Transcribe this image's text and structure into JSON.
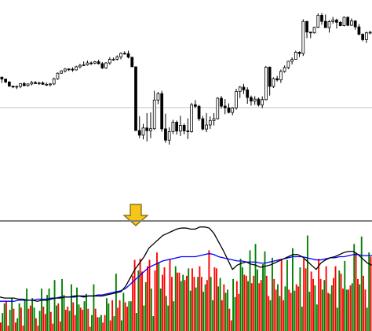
{
  "chart_data": [
    {
      "type": "candlestick",
      "title": "",
      "xlabel": "",
      "ylabel": "",
      "grid": false,
      "ylim": [
        0,
        100
      ],
      "reference_line": 46,
      "arrow_at_index": 49,
      "colors": {
        "bull_body": "#ffffff",
        "bear_body": "#000000",
        "wick": "#000000",
        "reference_line": "#c8c8c8",
        "arrow_fill": "#f5c518",
        "arrow_stroke": "#7a6000"
      },
      "candles": [
        [
          62.5,
          62.5,
          59.4,
          61.5
        ],
        [
          61.5,
          61.5,
          59.3,
          59.9
        ],
        [
          59.9,
          60.3,
          57.2,
          57.7
        ],
        [
          57.7,
          57.9,
          56.5,
          57.2
        ],
        [
          57.2,
          58.0,
          56.0,
          57.5
        ],
        [
          57.5,
          59.3,
          56.5,
          59.0
        ],
        [
          59.0,
          59.9,
          57.6,
          57.9
        ],
        [
          57.9,
          59.1,
          57.4,
          58.8
        ],
        [
          58.8,
          60.5,
          58.0,
          59.6
        ],
        [
          59.6,
          60.4,
          58.8,
          59.0
        ],
        [
          59.0,
          60.1,
          58.3,
          59.4
        ],
        [
          59.4,
          60.2,
          58.4,
          58.6
        ],
        [
          58.6,
          59.6,
          57.8,
          58.6
        ],
        [
          58.6,
          59.3,
          57.5,
          58.8
        ],
        [
          58.8,
          62.2,
          58.2,
          61.6
        ],
        [
          61.6,
          65.0,
          61.1,
          64.6
        ],
        [
          64.6,
          66.2,
          64.3,
          65.9
        ],
        [
          65.9,
          67.4,
          65.0,
          66.9
        ],
        [
          66.9,
          67.3,
          65.8,
          66.8
        ],
        [
          66.8,
          67.8,
          65.4,
          66.4
        ],
        [
          66.4,
          68.7,
          66.1,
          68.1
        ],
        [
          68.1,
          69.7,
          67.2,
          68.9
        ],
        [
          68.9,
          71.0,
          68.6,
          69.2
        ],
        [
          69.2,
          71.5,
          68.7,
          70.2
        ],
        [
          70.2,
          71.0,
          69.1,
          70.1
        ],
        [
          70.1,
          71.3,
          69.5,
          70.8
        ],
        [
          70.8,
          71.9,
          69.4,
          69.8
        ],
        [
          69.8,
          70.7,
          66.9,
          67.5
        ],
        [
          67.5,
          70.6,
          67.0,
          70.2
        ],
        [
          70.2,
          73.3,
          69.2,
          72.1
        ],
        [
          72.1,
          73.1,
          71.3,
          72.2
        ],
        [
          72.2,
          74.3,
          71.5,
          73.5
        ],
        [
          73.5,
          75.9,
          72.1,
          75.4
        ],
        [
          75.4,
          76.5,
          74.7,
          75.2
        ],
        [
          75.2,
          76.8,
          72.6,
          73.3
        ],
        [
          73.3,
          73.3,
          68.0,
          68.1
        ],
        [
          68.1,
          68.3,
          33.4,
          33.6
        ],
        [
          33.6,
          41.4,
          29.5,
          31.1
        ],
        [
          31.1,
          37.2,
          28.8,
          35.0
        ],
        [
          35.0,
          43.0,
          27.7,
          33.5
        ],
        [
          33.5,
          43.4,
          29.5,
          34.6
        ],
        [
          34.6,
          55.1,
          34.0,
          50.1
        ],
        [
          50.1,
          54.5,
          47.9,
          53.6
        ],
        [
          53.6,
          55.1,
          32.9,
          34.5
        ],
        [
          34.5,
          42.7,
          27.0,
          28.4
        ],
        [
          28.4,
          35.3,
          26.0,
          33.0
        ],
        [
          33.0,
          39.4,
          31.7,
          38.1
        ],
        [
          38.1,
          39.0,
          31.4,
          33.3
        ],
        [
          33.3,
          41.6,
          30.7,
          36.4
        ],
        [
          36.4,
          37.4,
          31.5,
          33.4
        ],
        [
          33.4,
          40.2,
          29.0,
          33.0
        ],
        [
          33.0,
          48.6,
          32.4,
          47.6
        ],
        [
          47.6,
          50.1,
          45.8,
          46.7
        ],
        [
          46.7,
          47.5,
          38.8,
          40.0
        ],
        [
          40.0,
          41.5,
          33.7,
          34.4
        ],
        [
          34.4,
          43.1,
          32.7,
          36.6
        ],
        [
          36.6,
          41.3,
          34.5,
          39.0
        ],
        [
          39.0,
          43.0,
          36.3,
          40.0
        ],
        [
          40.0,
          51.6,
          39.6,
          51.1
        ],
        [
          51.1,
          52.3,
          45.6,
          46.8
        ],
        [
          46.8,
          50.6,
          42.4,
          45.9
        ],
        [
          45.9,
          48.3,
          42.9,
          43.4
        ],
        [
          43.4,
          46.3,
          41.9,
          45.9
        ],
        [
          45.9,
          56.2,
          44.9,
          54.7
        ],
        [
          54.7,
          57.7,
          51.2,
          57.1
        ],
        [
          57.1,
          58.8,
          53.4,
          55.6
        ],
        [
          55.6,
          57.0,
          48.1,
          51.5
        ],
        [
          51.5,
          52.5,
          47.1,
          49.6
        ],
        [
          49.6,
          52.2,
          47.5,
          50.6
        ],
        [
          50.6,
          51.5,
          46.6,
          47.5
        ],
        [
          47.5,
          52.1,
          45.7,
          50.3
        ],
        [
          50.3,
          68.6,
          49.9,
          67.9
        ],
        [
          67.9,
          68.3,
          52.5,
          57.5
        ],
        [
          57.5,
          62.4,
          56.6,
          61.7
        ],
        [
          61.7,
          63.2,
          60.1,
          61.0
        ],
        [
          61.0,
          66.6,
          59.4,
          65.6
        ],
        [
          65.6,
          68.8,
          64.9,
          67.7
        ],
        [
          67.7,
          71.4,
          66.8,
          71.1
        ],
        [
          71.1,
          73.2,
          69.4,
          72.1
        ],
        [
          72.1,
          76.8,
          71.9,
          76.0
        ],
        [
          76.0,
          76.5,
          73.4,
          75.3
        ],
        [
          75.3,
          93.8,
          74.0,
          92.7
        ],
        [
          92.7,
          92.7,
          83.6,
          86.9
        ],
        [
          86.9,
          86.9,
          83.6,
          86.5
        ],
        [
          86.5,
          89.8,
          86.1,
          89.5
        ],
        [
          89.5,
          97.0,
          89.0,
          96.0
        ],
        [
          96.0,
          97.2,
          90.9,
          92.7
        ],
        [
          92.7,
          96.4,
          89.2,
          89.3
        ],
        [
          89.3,
          93.4,
          86.6,
          92.6
        ],
        [
          92.6,
          95.1,
          91.4,
          93.4
        ],
        [
          93.4,
          94.2,
          88.8,
          92.2
        ],
        [
          92.2,
          92.8,
          90.1,
          90.4
        ],
        [
          90.4,
          95.3,
          90.0,
          94.9
        ],
        [
          94.9,
          95.3,
          90.1,
          90.6
        ],
        [
          90.6,
          94.3,
          90.3,
          92.9
        ],
        [
          92.9,
          93.3,
          88.2,
          89.7
        ],
        [
          89.7,
          91.2,
          85.2,
          85.7
        ],
        [
          85.7,
          86.2,
          81.9,
          82.8
        ],
        [
          82.8,
          87.1,
          81.0,
          86.5
        ],
        [
          86.5,
          87.5,
          85.7,
          86.8
        ]
      ]
    },
    {
      "type": "bar",
      "title": "",
      "xlabel": "",
      "ylabel": "",
      "grid": false,
      "ylim": [
        0,
        100
      ],
      "colors": {
        "up": "#008000",
        "down": "#ff0000",
        "ma_fast": "#000000",
        "ma_slow": "#0000ff",
        "separator": "#808080"
      },
      "series": [
        {
          "values": [
            17,
            26,
            20,
            31,
            12,
            26,
            29,
            40,
            31,
            22,
            19,
            40,
            34,
            40,
            48,
            24,
            49,
            34,
            19,
            44,
            41,
            25,
            28,
            35,
            15,
            44,
            13,
            15,
            31,
            26,
            14,
            54,
            10,
            36,
            28,
            28,
            17,
            57,
            24,
            46,
            40,
            14,
            65,
            40,
            33,
            24,
            28,
            61,
            47,
            53,
            59,
            38,
            41,
            51,
            37,
            44,
            51,
            29,
            42,
            50,
            36,
            39,
            49,
            32,
            68,
            60,
            47,
            76,
            82,
            58,
            63,
            75,
            29,
            69,
            44,
            33,
            42,
            67,
            78,
            38,
            60,
            23,
            90,
            37,
            43,
            25,
            39,
            48,
            35,
            43,
            22,
            57,
            66,
            39,
            45,
            82,
            44,
            89,
            22,
            74
          ]
        },
        {
          "values": [
            8,
            28,
            5,
            21,
            8,
            22,
            5,
            21,
            24,
            12,
            5,
            23,
            16,
            18,
            7,
            26,
            9,
            20,
            23,
            27,
            15,
            22,
            20,
            21,
            4,
            21,
            13,
            8,
            15,
            10,
            29,
            22,
            29,
            27,
            23,
            52,
            67,
            68,
            56,
            61,
            67,
            57,
            74,
            53,
            60,
            68,
            51,
            55,
            55,
            48,
            52,
            59,
            51,
            61,
            51,
            48,
            76,
            60,
            59,
            29,
            44,
            21,
            10,
            47,
            35,
            53,
            52,
            45,
            52,
            45,
            48,
            52,
            33,
            49,
            39,
            67,
            29,
            39,
            36,
            44,
            42,
            68,
            59,
            56,
            49,
            68,
            49,
            61,
            36,
            50,
            61,
            54,
            40,
            39,
            43,
            74,
            49,
            52,
            39,
            70
          ]
        }
      ],
      "colors_per_bar": [
        "r",
        "g",
        "g",
        "g",
        "r",
        "g",
        "g",
        "g",
        "r",
        "r",
        "g",
        "g",
        "g",
        "r",
        "g",
        "r",
        "r",
        "g",
        "g",
        "g",
        "r",
        "g",
        "r",
        "g",
        "r",
        "g",
        "g",
        "g",
        "g",
        "r",
        "g",
        "g",
        "r",
        "r",
        "r",
        "g",
        "r",
        "g",
        "r",
        "g",
        "r",
        "g",
        "g",
        "r",
        "g",
        "r",
        "r",
        "g",
        "r",
        "r",
        "g",
        "g",
        "r",
        "g",
        "g",
        "r",
        "r",
        "g",
        "r",
        "g",
        "r",
        "g",
        "r",
        "g",
        "g",
        "r",
        "g",
        "r",
        "r",
        "g",
        "r",
        "g",
        "r",
        "g",
        "g",
        "r",
        "g",
        "r",
        "g",
        "r",
        "g",
        "r",
        "r",
        "g",
        "g",
        "r",
        "g",
        "r",
        "r",
        "g",
        "r",
        "g",
        "r",
        "r",
        "r",
        "r",
        "r",
        "g",
        "g",
        "g",
        "g",
        "r",
        "g",
        "r",
        "g",
        "r",
        "r",
        "g",
        "r",
        "g",
        "r",
        "g",
        "r",
        "g",
        "g",
        "r",
        "g",
        "r",
        "r",
        "r",
        "r",
        "g",
        "r",
        "g",
        "g",
        "r",
        "g",
        "r",
        "g",
        "r",
        "r",
        "g",
        "r",
        "g",
        "r",
        "r",
        "r",
        "g",
        "r",
        "g",
        "r",
        "g",
        "g",
        "r",
        "r",
        "g",
        "g",
        "r",
        "g",
        "g",
        "r",
        "g",
        "g",
        "r",
        "g",
        "g",
        "g",
        "r",
        "g",
        "r",
        "r",
        "g",
        "r",
        "g",
        "g",
        "r",
        "g",
        "g",
        "g",
        "r",
        "g",
        "r",
        "g",
        "r",
        "r",
        "g",
        "r",
        "g",
        "g",
        "r",
        "g",
        "r",
        "g",
        "r",
        "g",
        "r",
        "g",
        "g",
        "r",
        "r",
        "r",
        "g",
        "r",
        "g",
        "r",
        "g",
        "r",
        "g",
        "g",
        "g",
        "r",
        "r",
        "g",
        "r"
      ],
      "ma_fast": [
        32,
        31,
        31,
        31,
        30,
        30,
        29,
        29,
        28,
        29,
        29,
        30,
        31,
        31,
        32,
        32,
        33,
        33,
        32,
        33,
        33,
        33,
        33,
        34,
        35,
        36,
        37,
        42,
        50,
        58,
        64,
        70,
        78,
        82,
        86,
        90,
        92,
        94,
        96,
        97,
        97,
        96,
        96,
        98,
        98,
        97,
        92,
        84,
        76,
        67,
        58,
        62,
        64,
        65,
        63,
        62,
        60,
        61,
        62,
        64,
        66,
        68,
        70,
        72,
        72,
        70,
        66,
        62,
        58,
        64,
        67,
        69,
        70,
        72,
        74,
        75,
        75,
        72,
        68,
        64,
        62
      ],
      "ma_slow": [
        28,
        28,
        28,
        28,
        29,
        29,
        29,
        29,
        30,
        30,
        30,
        31,
        31,
        32,
        32,
        32,
        32,
        33,
        33,
        33,
        33,
        34,
        34,
        35,
        36,
        37,
        38,
        40,
        44,
        48,
        52,
        56,
        60,
        62,
        64,
        66,
        67,
        68,
        69,
        70,
        70,
        70,
        70,
        71,
        72,
        73,
        72,
        70,
        69,
        68,
        67,
        66,
        66,
        65,
        65,
        65,
        64,
        64,
        65,
        66,
        67,
        68,
        69,
        70,
        70,
        70,
        69,
        68,
        67,
        67,
        68,
        69,
        69,
        70,
        70,
        71,
        72,
        72,
        71,
        71,
        71
      ]
    }
  ]
}
